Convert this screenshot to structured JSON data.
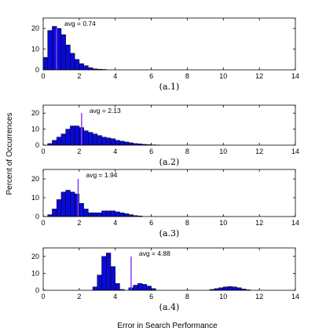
{
  "figure": {
    "ylabel": "Percent of Occurrences",
    "xlabel": "Error in Search Performance"
  },
  "colors": {
    "bar_fill": "#0a0ad8",
    "bar_edge": "#000000",
    "avg_line": "#8844ee",
    "axes": "#000000"
  },
  "chart_data": [
    {
      "type": "bar",
      "subtitle": "(a.1)",
      "avg_label": "avg = 0.74",
      "avg": 0.74,
      "xlim": [
        0,
        14
      ],
      "ylim": [
        0,
        25
      ],
      "xticks": [
        0,
        2,
        4,
        6,
        8,
        10,
        12,
        14
      ],
      "yticks": [
        0,
        10,
        20
      ],
      "bin_width": 0.25,
      "bins": [
        [
          0.125,
          6
        ],
        [
          0.375,
          19
        ],
        [
          0.625,
          21
        ],
        [
          0.875,
          20
        ],
        [
          1.125,
          17
        ],
        [
          1.375,
          12
        ],
        [
          1.625,
          8
        ],
        [
          1.875,
          5
        ],
        [
          2.125,
          3
        ],
        [
          2.375,
          2
        ],
        [
          2.625,
          1
        ],
        [
          2.875,
          0.5
        ],
        [
          3.125,
          0.3
        ],
        [
          3.375,
          0.2
        ]
      ]
    },
    {
      "type": "bar",
      "subtitle": "(a.2)",
      "avg_label": "avg = 2.13",
      "avg": 2.13,
      "xlim": [
        0,
        14
      ],
      "ylim": [
        0,
        25
      ],
      "xticks": [
        0,
        2,
        4,
        6,
        8,
        10,
        12,
        14
      ],
      "yticks": [
        0,
        10,
        20
      ],
      "bin_width": 0.25,
      "bins": [
        [
          0.375,
          1
        ],
        [
          0.625,
          3
        ],
        [
          0.875,
          5
        ],
        [
          1.125,
          7
        ],
        [
          1.375,
          10
        ],
        [
          1.625,
          12
        ],
        [
          1.875,
          12
        ],
        [
          2.125,
          11
        ],
        [
          2.375,
          9
        ],
        [
          2.625,
          8
        ],
        [
          2.875,
          7
        ],
        [
          3.125,
          6
        ],
        [
          3.375,
          5
        ],
        [
          3.625,
          4.5
        ],
        [
          3.875,
          4
        ],
        [
          4.125,
          3
        ],
        [
          4.375,
          2.5
        ],
        [
          4.625,
          2
        ],
        [
          4.875,
          1.5
        ],
        [
          5.125,
          1
        ],
        [
          5.375,
          0.8
        ],
        [
          5.625,
          0.5
        ],
        [
          5.875,
          0.3
        ],
        [
          6.125,
          0.2
        ],
        [
          6.375,
          0.1
        ]
      ]
    },
    {
      "type": "bar",
      "subtitle": "(a.3)",
      "avg_label": "avg = 1.94",
      "avg": 1.94,
      "xlim": [
        0,
        14
      ],
      "ylim": [
        0,
        25
      ],
      "xticks": [
        0,
        2,
        4,
        6,
        8,
        10,
        12,
        14
      ],
      "yticks": [
        0,
        10,
        20
      ],
      "bin_width": 0.25,
      "bins": [
        [
          0.375,
          1
        ],
        [
          0.625,
          4
        ],
        [
          0.875,
          9
        ],
        [
          1.125,
          13
        ],
        [
          1.375,
          14
        ],
        [
          1.625,
          13
        ],
        [
          1.875,
          12
        ],
        [
          2.125,
          7
        ],
        [
          2.375,
          4
        ],
        [
          2.625,
          2
        ],
        [
          2.875,
          2
        ],
        [
          3.125,
          2
        ],
        [
          3.375,
          3
        ],
        [
          3.625,
          3
        ],
        [
          3.875,
          3
        ],
        [
          4.125,
          2.5
        ],
        [
          4.375,
          2
        ],
        [
          4.625,
          1.5
        ],
        [
          4.875,
          1
        ],
        [
          5.125,
          0.5
        ],
        [
          5.375,
          0.3
        ]
      ]
    },
    {
      "type": "bar",
      "subtitle": "(a.4)",
      "avg_label": "avg = 4.88",
      "avg": 4.88,
      "xlim": [
        0,
        14
      ],
      "ylim": [
        0,
        25
      ],
      "xticks": [
        0,
        2,
        4,
        6,
        8,
        10,
        12,
        14
      ],
      "yticks": [
        0,
        10,
        20
      ],
      "bin_width": 0.25,
      "bins": [
        [
          2.875,
          2
        ],
        [
          3.125,
          9
        ],
        [
          3.375,
          20
        ],
        [
          3.625,
          22
        ],
        [
          3.875,
          14
        ],
        [
          4.125,
          4
        ],
        [
          4.375,
          0.5
        ],
        [
          4.875,
          1.5
        ],
        [
          5.125,
          3
        ],
        [
          5.375,
          4
        ],
        [
          5.625,
          3.5
        ],
        [
          5.875,
          2.5
        ],
        [
          6.125,
          1
        ],
        [
          9.375,
          0.5
        ],
        [
          9.625,
          1
        ],
        [
          9.875,
          1.5
        ],
        [
          10.125,
          2
        ],
        [
          10.375,
          2.2
        ],
        [
          10.625,
          2
        ],
        [
          10.875,
          1.5
        ],
        [
          11.125,
          0.8
        ],
        [
          11.375,
          0.3
        ]
      ]
    }
  ]
}
